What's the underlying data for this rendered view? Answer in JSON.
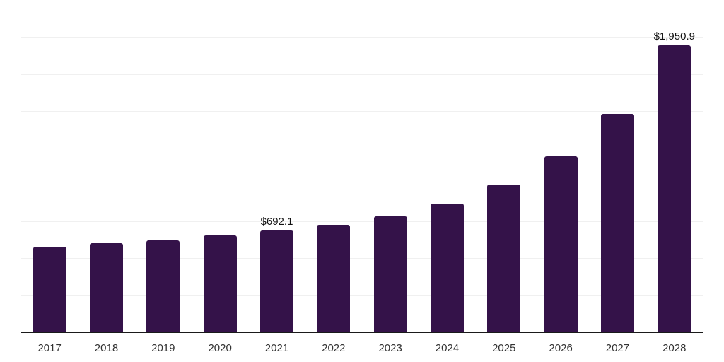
{
  "chart_data": {
    "type": "bar",
    "title": "",
    "xlabel": "",
    "ylabel": "",
    "categories": [
      "2017",
      "2018",
      "2019",
      "2020",
      "2021",
      "2022",
      "2023",
      "2024",
      "2025",
      "2026",
      "2027",
      "2028"
    ],
    "values": [
      583,
      607,
      627,
      660,
      692.1,
      731,
      789,
      875,
      1004,
      1196,
      1487,
      1950.9
    ],
    "data_labels": [
      "",
      "",
      "",
      "",
      "$692.1",
      "",
      "",
      "",
      "",
      "",
      "",
      "$1,950.9"
    ],
    "ylim": [
      0,
      2250
    ],
    "gridline_step": 250,
    "grid": true,
    "legend": false,
    "colors": {
      "bar": "#341249",
      "axis_line": "#1a1a1a",
      "gridline": "#f0f0f0",
      "data_label": "#111111",
      "tick_label": "#333333",
      "background": "#ffffff"
    }
  }
}
